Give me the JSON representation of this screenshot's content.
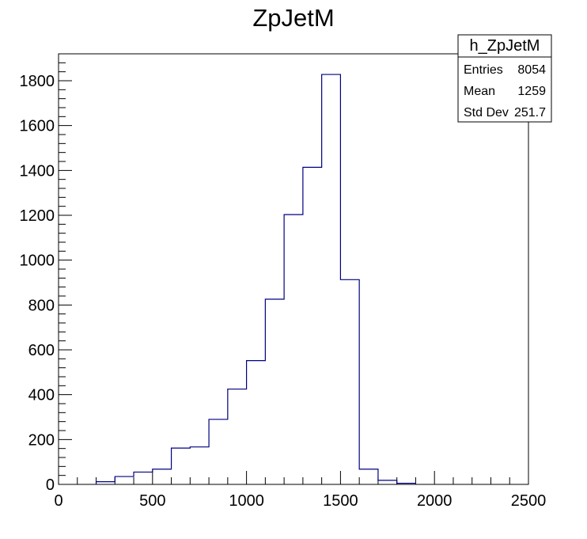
{
  "chart_data": {
    "type": "bar",
    "title": "ZpJetM",
    "xlabel": "",
    "ylabel": "",
    "xlim": [
      0,
      2500
    ],
    "ylim": [
      0,
      1920
    ],
    "bin_width": 100,
    "bins_low_edge": [
      200,
      300,
      400,
      500,
      600,
      700,
      800,
      900,
      1000,
      1100,
      1200,
      1300,
      1400,
      1500,
      1600,
      1700,
      1800
    ],
    "values": [
      12,
      35,
      55,
      68,
      162,
      167,
      290,
      425,
      552,
      826,
      1203,
      1414,
      1828,
      913,
      68,
      18,
      5
    ],
    "line_color": "#000080",
    "x_ticks": [
      "0",
      "500",
      "1000",
      "1500",
      "2000",
      "2500"
    ],
    "y_ticks": [
      "0",
      "200",
      "400",
      "600",
      "800",
      "1000",
      "1200",
      "1400",
      "1600",
      "1800"
    ],
    "grid": false,
    "legend": "none"
  },
  "stats_box": {
    "name": "h_ZpJetM",
    "rows": [
      {
        "label": "Entries",
        "value": "8054"
      },
      {
        "label": "Mean",
        "value": "1259"
      },
      {
        "label": "Std Dev",
        "value": "251.7"
      }
    ]
  }
}
